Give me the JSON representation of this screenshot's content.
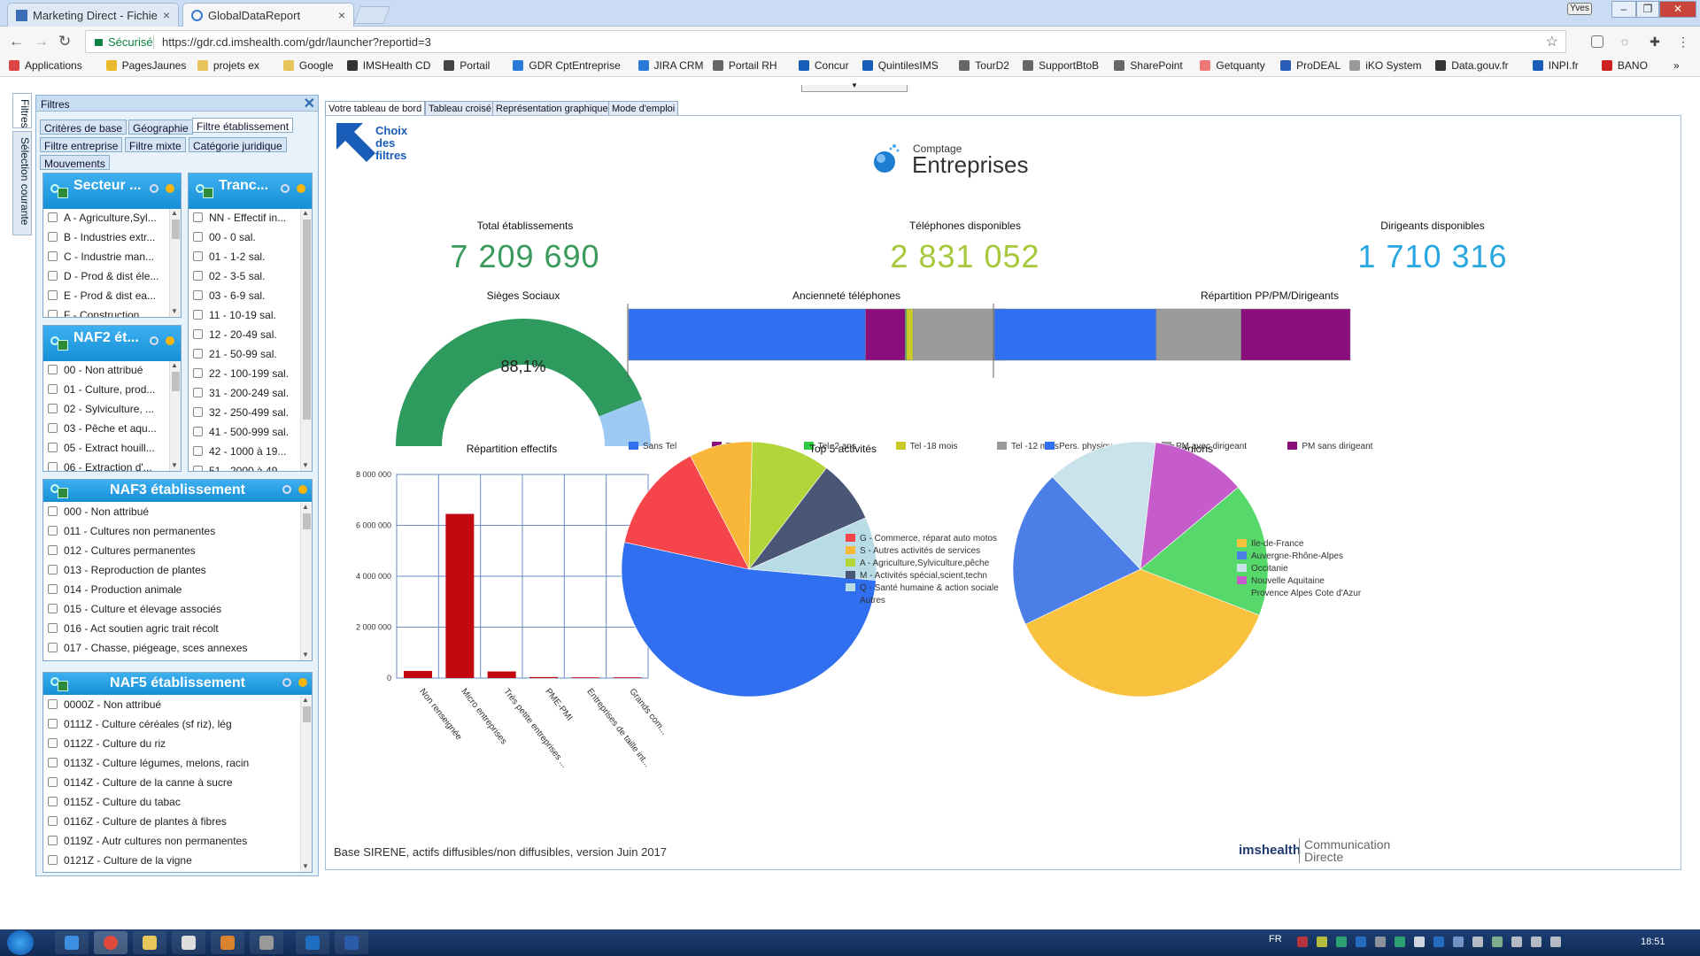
{
  "browser": {
    "tabs": [
      {
        "title": "Marketing Direct - Fichie",
        "active": false
      },
      {
        "title": "GlobalDataReport",
        "active": true
      }
    ],
    "user_chip": "Yves",
    "secure_label": "Sécurisé",
    "url": "https://gdr.cd.imshealth.com/gdr/launcher?reportid=3",
    "bookmarks": [
      "Applications",
      "PagesJaunes",
      "projets ex",
      "Google",
      "IMSHealth CD",
      "Portail",
      "GDR CptEntreprise",
      "JIRA CRM",
      "Portail RH",
      "Concur",
      "QuintilesIMS",
      "TourD2",
      "SupportBtoB",
      "SharePoint",
      "Getquanty",
      "ProDEAL",
      "iKO System",
      "Data.gouv.fr",
      "INPI.fr",
      "BANO"
    ],
    "overflow": "»"
  },
  "side_tabs": [
    "Filtres",
    "Sélection courante"
  ],
  "filters": {
    "title": "Filtres",
    "tabs_row1": [
      "Critères de base",
      "Géographie",
      "Filtre établissement"
    ],
    "tabs_row2": [
      "Filtre entreprise",
      "Filtre mixte",
      "Catégorie juridique"
    ],
    "tabs_row3": [
      "Mouvements"
    ],
    "active_tab": "Filtre établissement",
    "secteur": {
      "title": "Secteur ...",
      "items": [
        "A - Agriculture,Syl...",
        "B - Industries extr...",
        "C - Industrie man...",
        "D - Prod & dist éle...",
        "E - Prod & dist ea...",
        "F - Construction"
      ]
    },
    "tranche": {
      "title": "Tranc...",
      "items": [
        "NN - Effectif in...",
        "00 - 0 sal.",
        "01 - 1-2 sal.",
        "02 - 3-5 sal.",
        "03 - 6-9 sal.",
        "11 - 10-19 sal.",
        "12 - 20-49 sal.",
        "21 - 50-99 sal.",
        "22 - 100-199 sal.",
        "31 - 200-249 sal.",
        "32 - 250-499 sal.",
        "41 - 500-999 sal.",
        "42 - 1000 à 19...",
        "51 - 2000 à 49..."
      ]
    },
    "naf2": {
      "title": "NAF2 ét...",
      "items": [
        "00 - Non attribué",
        "01 - Culture, prod...",
        "02 - Sylviculture, ...",
        "03 - Pêche et aqu...",
        "05 - Extract houill...",
        "06 - Extraction d'..."
      ]
    },
    "naf3": {
      "title": "NAF3 établissement",
      "items": [
        "000 - Non attribué",
        "011 - Cultures non permanentes",
        "012 - Cultures permanentes",
        "013 - Reproduction de plantes",
        "014 - Production animale",
        "015 - Culture et élevage associés",
        "016 - Act soutien agric trait récolt",
        "017 - Chasse, piégeage, sces annexes"
      ]
    },
    "naf5": {
      "title": "NAF5 établissement",
      "items": [
        "0000Z - Non attribué",
        "0111Z - Culture céréales (sf riz), lég",
        "0112Z - Culture du riz",
        "0113Z - Culture légumes, melons, racin",
        "0114Z - Culture de la canne à sucre",
        "0115Z - Culture du tabac",
        "0116Z - Culture de plantes à fibres",
        "0119Z - Autr cultures non permanentes",
        "0121Z - Culture de la vigne"
      ]
    }
  },
  "main": {
    "tabs": [
      "Votre tableau de bord",
      "Tableau croisé",
      "Représentation graphique",
      "Mode d'emploi"
    ],
    "choix_filtres": [
      "Choix",
      "des",
      "filtres"
    ],
    "logo": {
      "small": "Comptage",
      "big": "Entreprises"
    },
    "kpis": [
      {
        "label": "Total établissements",
        "value": "7 209 690",
        "color": "#3a9a5b"
      },
      {
        "label": "Téléphones disponibles",
        "value": "2 831 052",
        "color": "#a6c83a"
      },
      {
        "label": "Dirigeants disponibles",
        "value": "1 710 316",
        "color": "#27a6e0"
      }
    ],
    "footer_note": "Base SIRENE, actifs diffusibles/non diffusibles, version Juin 2017",
    "brand": {
      "ims": "imshealth",
      "line1": "Communication",
      "line2": "Directe"
    }
  },
  "chart_data": [
    {
      "type": "gauge",
      "title": "Sièges Sociaux",
      "value": 88.1,
      "label": "88,1%",
      "colors": {
        "fill": "#2e9a5e",
        "rest": "#9ccaf2"
      }
    },
    {
      "type": "bar",
      "orientation": "horizontal-stacked",
      "title": "Ancienneté téléphones",
      "series": [
        {
          "name": "Sans Tel",
          "share": 60.5,
          "color": "#2f6ff0"
        },
        {
          "name": "Tel +2 ans",
          "share": 10.2,
          "color": "#8a0f7d"
        },
        {
          "name": "Tel -2 ans",
          "share": 0.3,
          "color": "#2ecc40"
        },
        {
          "name": "Tel -18 mois",
          "share": 1.7,
          "color": "#c9c92a"
        },
        {
          "name": "Tel -12 mois",
          "share": 27.3,
          "color": "#9a9a9a"
        }
      ],
      "legend": "bottom"
    },
    {
      "type": "bar",
      "orientation": "horizontal-stacked",
      "title": "Répartition PP/PM/Dirigeants",
      "series": [
        {
          "name": "Pers. physiques",
          "share": 45.5,
          "color": "#2f6ff0"
        },
        {
          "name": "PM avec dirigeant",
          "share": 23.8,
          "color": "#9a9a9a"
        },
        {
          "name": "PM sans dirigeant",
          "share": 30.7,
          "color": "#8a0f7d"
        }
      ],
      "legend": "bottom"
    },
    {
      "type": "bar",
      "title": "Répartition effectifs",
      "categories": [
        "Non renseignée",
        "Micro entreprises",
        "Très petite entreprises ...",
        "PME-PMI",
        "Entreprises de taille int...",
        "Grands com..."
      ],
      "values": [
        280000,
        6450000,
        260000,
        40000,
        5000,
        2000
      ],
      "ylim": [
        0,
        8000000
      ],
      "yticks": [
        "0",
        "2 000 000",
        "4 000 000",
        "6 000 000",
        "8 000 000"
      ],
      "ytick_values": [
        0,
        2000000,
        4000000,
        6000000,
        8000000
      ],
      "color": "#c4080f",
      "grid": true
    },
    {
      "type": "pie",
      "title": "Top 5 activités",
      "slices": [
        {
          "name": "Autres",
          "share": 52,
          "color": "#2f6ff0"
        },
        {
          "name": "G - Commerce, réparat auto motos",
          "share": 14,
          "color": "#f5444a"
        },
        {
          "name": "S - Autres activités de services",
          "share": 8,
          "color": "#f9b73a"
        },
        {
          "name": "A - Agriculture,Sylviculture,pêche",
          "share": 10,
          "color": "#b2d63a"
        },
        {
          "name": "M - Activités spécial,scient,techn",
          "share": 8,
          "color": "#4a5676"
        },
        {
          "name": "Q - Santé humaine & action sociale",
          "share": 8,
          "color": "#b8dce6"
        }
      ],
      "legend_order": [
        "G - Commerce, réparat auto motos",
        "S - Autres activités de services",
        "A - Agriculture,Sylviculture,pêche",
        "M - Activités spécial,scient,techn",
        "Q - Santé humaine & action sociale",
        "Autres"
      ],
      "legend": "right"
    },
    {
      "type": "pie",
      "title": "Top 5 régions",
      "slices": [
        {
          "name": "Provence Alpes Cote d'Azur",
          "share": 17,
          "color": "#56d96a"
        },
        {
          "name": "Ile-de-France",
          "share": 37,
          "color": "#f9c23e"
        },
        {
          "name": "Auvergne-Rhône-Alpes",
          "share": 20,
          "color": "#4c7ee8"
        },
        {
          "name": "Occitanie",
          "share": 14,
          "color": "#c9e3ea"
        },
        {
          "name": "Nouvelle Aquitaine",
          "share": 12,
          "color": "#c65bcc"
        }
      ],
      "legend_order": [
        "Ile-de-France",
        "Auvergne-Rhône-Alpes",
        "Occitanie",
        "Nouvelle Aquitaine",
        "Provence Alpes Cote d'Azur"
      ],
      "legend": "right"
    }
  ],
  "taskbar": {
    "lang": "FR",
    "time": "18:51"
  }
}
